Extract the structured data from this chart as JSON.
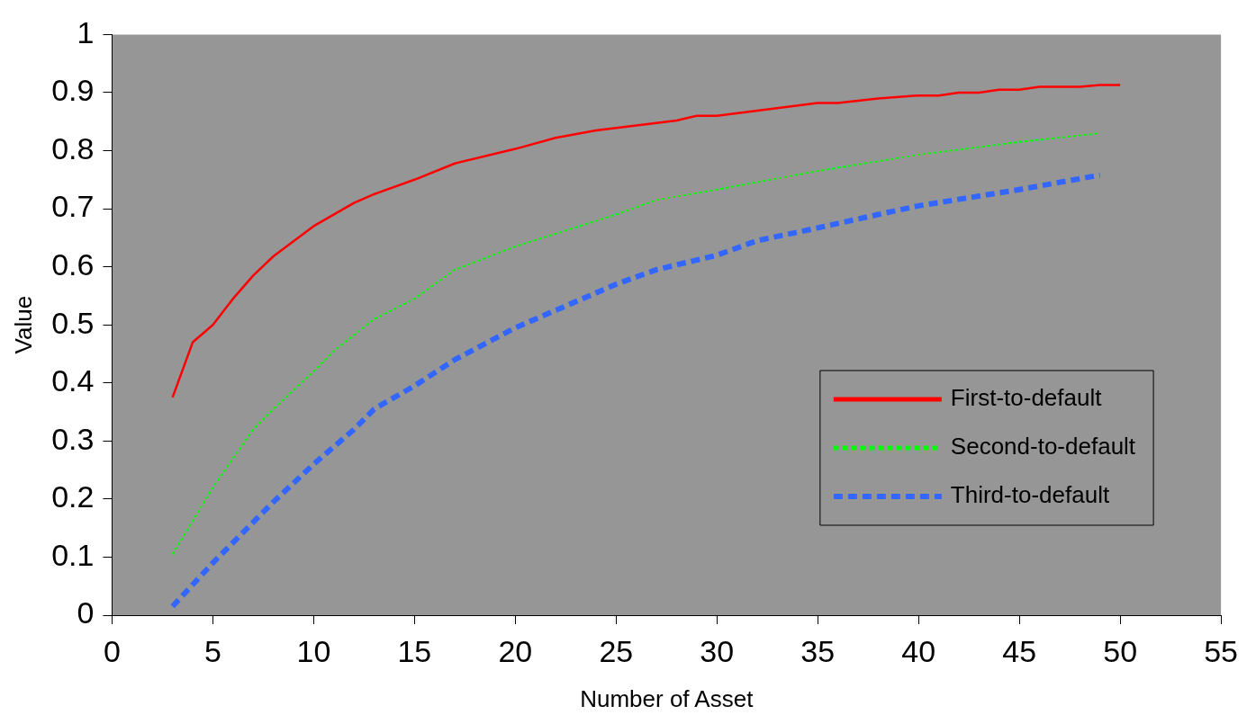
{
  "chart_data": {
    "type": "line",
    "xlabel": "Number of Asset",
    "ylabel": "Value",
    "xlim": [
      0,
      55
    ],
    "ylim": [
      0,
      1
    ],
    "xticks": [
      0,
      5,
      10,
      15,
      20,
      25,
      30,
      35,
      40,
      45,
      50,
      55
    ],
    "yticks": [
      0,
      0.1,
      0.2,
      0.3,
      0.4,
      0.5,
      0.6,
      0.7,
      0.8,
      0.9,
      1
    ],
    "grid": false,
    "legend": "bottom right",
    "marker": "none",
    "series": [
      {
        "name": "First-to-default",
        "color": "#ff0000",
        "line_style": "solid",
        "x": [
          3,
          4,
          5,
          6,
          7,
          8,
          10,
          12,
          13,
          15,
          17,
          20,
          22,
          24,
          28,
          29,
          30,
          35,
          36,
          38,
          40,
          41,
          42,
          43,
          44,
          45,
          46,
          48,
          49,
          50
        ],
        "values": [
          0.375,
          0.47,
          0.5,
          0.545,
          0.585,
          0.618,
          0.67,
          0.71,
          0.725,
          0.75,
          0.778,
          0.803,
          0.822,
          0.835,
          0.852,
          0.86,
          0.86,
          0.882,
          0.882,
          0.89,
          0.895,
          0.895,
          0.9,
          0.9,
          0.905,
          0.905,
          0.91,
          0.91,
          0.913,
          0.913
        ]
      },
      {
        "name": "Second-to-default",
        "color": "#00ff00",
        "line_style": "dotted",
        "x": [
          3,
          5,
          7,
          8,
          10,
          11,
          13,
          15,
          17,
          20,
          25,
          27,
          30,
          35,
          40,
          45,
          49
        ],
        "values": [
          0.105,
          0.22,
          0.32,
          0.355,
          0.42,
          0.455,
          0.51,
          0.545,
          0.595,
          0.635,
          0.69,
          0.715,
          0.733,
          0.765,
          0.793,
          0.815,
          0.83
        ]
      },
      {
        "name": "Third-to-default",
        "color": "#3366ff",
        "line_style": "dashed",
        "x": [
          3,
          5,
          7,
          8,
          10,
          12,
          13,
          15,
          17,
          20,
          23,
          25,
          27,
          30,
          32,
          35,
          38,
          40,
          45,
          49
        ],
        "values": [
          0.015,
          0.09,
          0.16,
          0.195,
          0.26,
          0.32,
          0.355,
          0.395,
          0.44,
          0.495,
          0.54,
          0.57,
          0.595,
          0.62,
          0.645,
          0.667,
          0.69,
          0.705,
          0.733,
          0.758
        ]
      }
    ]
  }
}
